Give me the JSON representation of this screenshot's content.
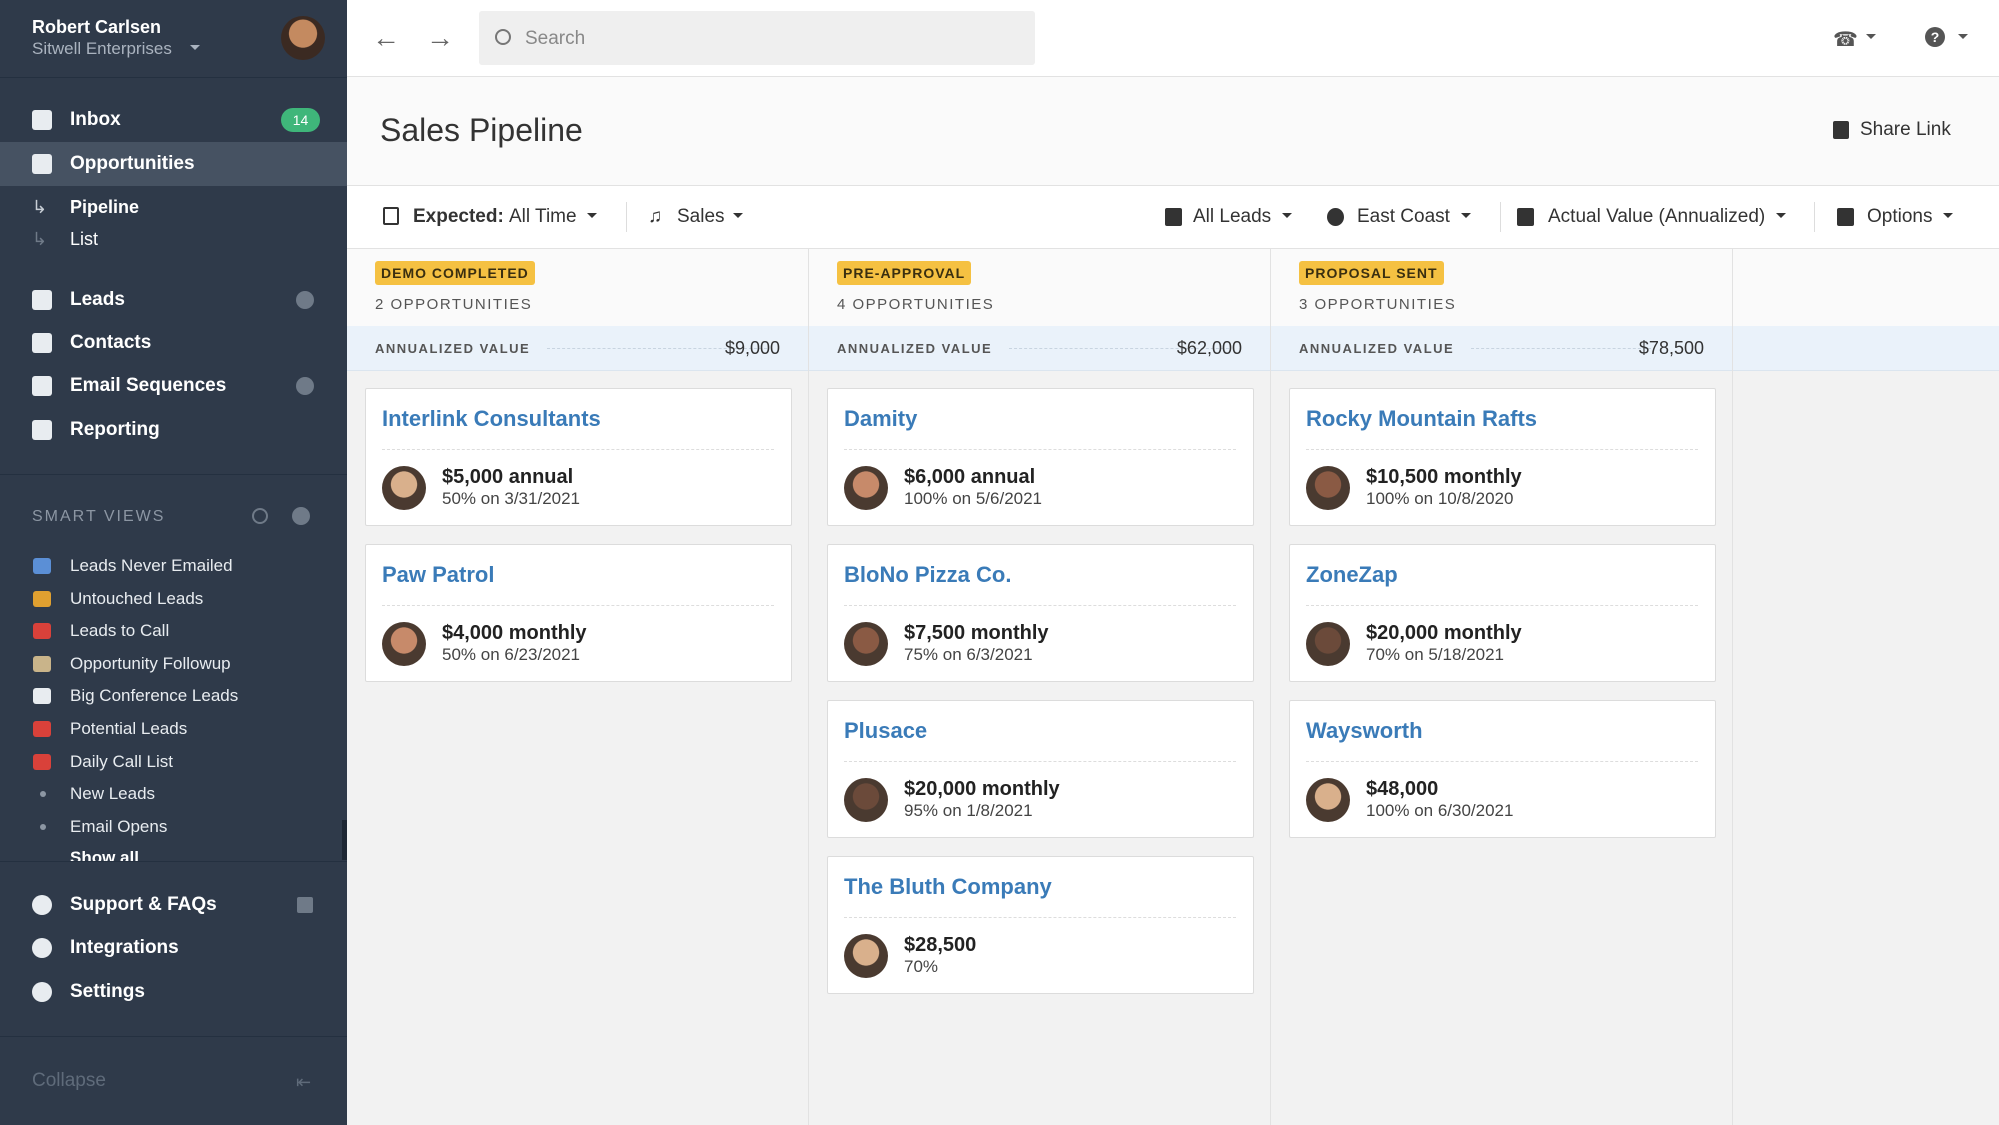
{
  "user": {
    "name": "Robert Carlsen",
    "company": "Sitwell Enterprises"
  },
  "nav": [
    {
      "label": "Inbox",
      "badge": 14
    },
    {
      "label": "Opportunities"
    }
  ],
  "sub_nav": [
    "Pipeline",
    "List"
  ],
  "nav2": [
    "Leads",
    "Contacts",
    "Email Sequences",
    "Reporting"
  ],
  "smart_views": {
    "title": "SMART VIEWS",
    "items": [
      "Leads Never Emailed",
      "Untouched Leads",
      "Leads to Call",
      "Opportunity Followup",
      "Big Conference Leads",
      "Potential Leads",
      "Daily Call List",
      "New Leads",
      "Email Opens"
    ],
    "show_all": "Show all"
  },
  "footer_nav": [
    "Support & FAQs",
    "Integrations",
    "Settings"
  ],
  "collapse": "Collapse",
  "search_placeholder": "Search",
  "page_title": "Sales Pipeline",
  "share": "Share Link",
  "filters": {
    "expected_label": "Expected:",
    "expected_value": "All Time",
    "pipeline": "Sales",
    "right": [
      "All Leads",
      "East Coast",
      "Actual Value (Annualized)",
      "Options"
    ]
  },
  "columns": [
    {
      "stage": "DEMO COMPLETED",
      "count": "2 OPPORTUNITIES",
      "value_label": "ANNUALIZED VALUE",
      "value": "$9,000",
      "cards": [
        {
          "name": "Interlink Consultants",
          "amount": "$5,000 annual",
          "detail": "50% on 3/31/2021"
        },
        {
          "name": "Paw Patrol",
          "amount": "$4,000 monthly",
          "detail": "50% on 6/23/2021"
        }
      ]
    },
    {
      "stage": "PRE-APPROVAL",
      "count": "4 OPPORTUNITIES",
      "value_label": "ANNUALIZED VALUE",
      "value": "$62,000",
      "cards": [
        {
          "name": "Damity",
          "amount": "$6,000 annual",
          "detail": "100% on 5/6/2021"
        },
        {
          "name": "BloNo Pizza Co.",
          "amount": "$7,500 monthly",
          "detail": "75% on 6/3/2021"
        },
        {
          "name": "Plusace",
          "amount": "$20,000 monthly",
          "detail": "95% on 1/8/2021"
        },
        {
          "name": "The Bluth Company",
          "amount": "$28,500",
          "detail": "70%"
        }
      ]
    },
    {
      "stage": "PROPOSAL SENT",
      "count": "3 OPPORTUNITIES",
      "value_label": "ANNUALIZED VALUE",
      "value": "$78,500",
      "cards": [
        {
          "name": "Rocky Mountain Rafts",
          "amount": "$10,500 monthly",
          "detail": "100% on 10/8/2020"
        },
        {
          "name": "ZoneZap",
          "amount": "$20,000 monthly",
          "detail": "70% on 5/18/2021"
        },
        {
          "name": "Waysworth",
          "amount": "$48,000",
          "detail": "100% on 6/30/2021"
        }
      ]
    }
  ]
}
